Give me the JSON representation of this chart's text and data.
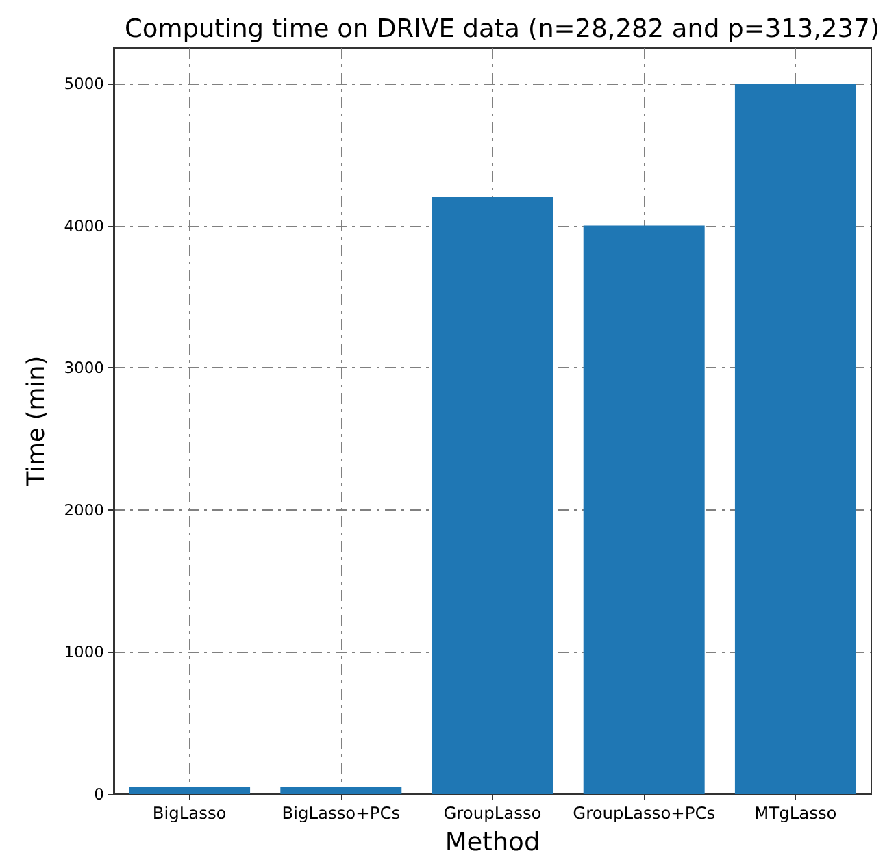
{
  "chart_data": {
    "type": "bar",
    "title": "Computing time on DRIVE data (n=28,282 and p=313,237)",
    "xlabel": "Method",
    "ylabel": "Time (min)",
    "categories": [
      "BigLasso",
      "BigLasso+PCs",
      "GroupLasso",
      "GroupLasso+PCs",
      "MTgLasso"
    ],
    "values": [
      50,
      50,
      4200,
      4000,
      5000
    ],
    "color": "#1f77b4",
    "ylim": [
      0,
      5250
    ],
    "yticks": [
      0,
      1000,
      2000,
      3000,
      4000,
      5000
    ],
    "grid": true
  }
}
